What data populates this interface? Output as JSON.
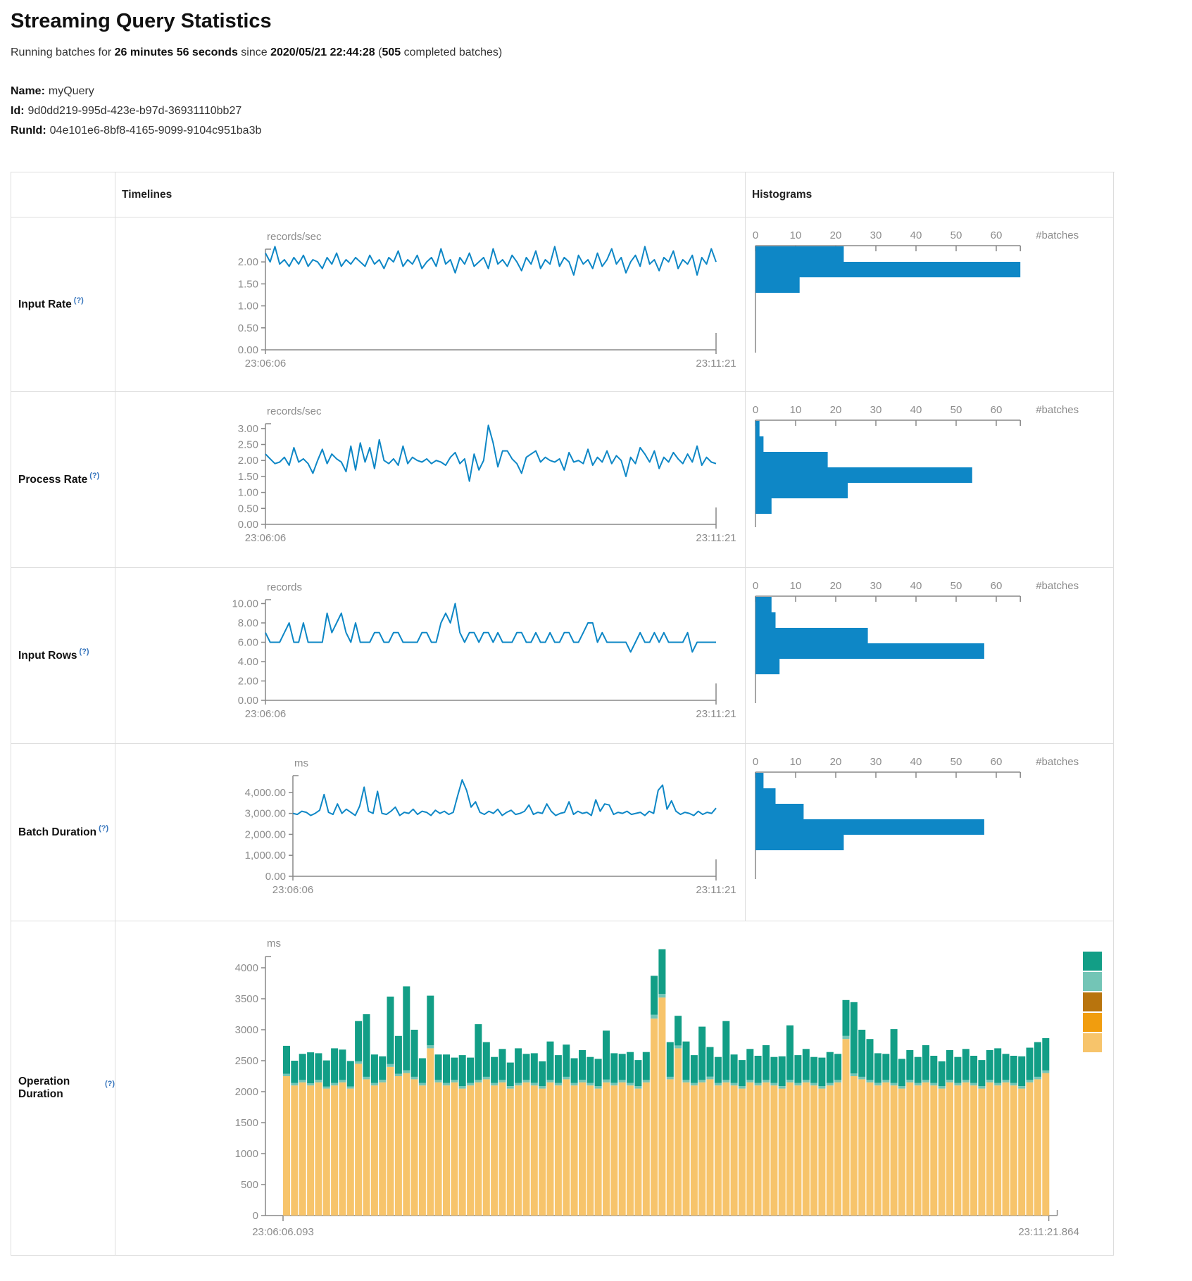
{
  "header": {
    "title": "Streaming Query Statistics",
    "running_prefix": "Running batches for ",
    "duration": "26 minutes 56 seconds",
    "since": " since ",
    "start_time": "2020/05/21 22:44:28",
    "open_paren": " (",
    "completed_count": "505",
    "completed_suffix": " completed batches)"
  },
  "query": {
    "name_label": "Name:",
    "name": "myQuery",
    "id_label": "Id:",
    "id": "9d0dd219-995d-423e-b97d-36931110bb27",
    "runid_label": "RunId:",
    "runid": "04e101e6-8bf8-4165-9099-9104c951ba3b"
  },
  "table": {
    "timelines_header": "Timelines",
    "histograms_header": "Histograms"
  },
  "rows": {
    "input_rate": {
      "label": "Input Rate",
      "help": "(?)"
    },
    "process_rate": {
      "label": "Process Rate",
      "help": "(?)"
    },
    "input_rows": {
      "label": "Input Rows",
      "help": "(?)"
    },
    "batch_duration": {
      "label": "Batch Duration",
      "help": "(?)"
    },
    "operation_duration": {
      "label": "Operation Duration",
      "help": "(?)"
    }
  },
  "colors": {
    "line_blue": "#0e87c6",
    "hist_blue": "#0e87c6",
    "axis_gray": "#888888",
    "text_gray": "#8c8c8c",
    "stack_tan": "#f7c46b",
    "stack_light_teal": "#73c5b6",
    "stack_teal": "#129e86",
    "legend_dark_orange": "#b8740d",
    "legend_orange": "#f19d0e"
  },
  "chart_data": [
    {
      "name": "Input Rate",
      "timeline": {
        "type": "line",
        "unit": "records/sec",
        "x_start": "23:06:06",
        "x_end": "23:11:21",
        "axis_x": 213,
        "ymax": 2.29,
        "yticks": [
          {
            "v": 0,
            "l": "0.00"
          },
          {
            "v": 0.5,
            "l": "0.50"
          },
          {
            "v": 1,
            "l": "1.00"
          },
          {
            "v": 1.5,
            "l": "1.50"
          },
          {
            "v": 2,
            "l": "2.00"
          }
        ],
        "values": [
          2.2,
          2.0,
          2.35,
          1.95,
          2.05,
          1.9,
          2.1,
          1.95,
          2.15,
          1.9,
          2.05,
          2.0,
          1.85,
          2.1,
          1.95,
          2.2,
          1.9,
          2.05,
          1.95,
          2.1,
          2.0,
          1.9,
          2.15,
          1.95,
          2.05,
          1.85,
          2.1,
          2.0,
          2.25,
          1.9,
          2.05,
          1.95,
          2.15,
          1.85,
          2.0,
          2.1,
          1.9,
          2.3,
          1.95,
          2.05,
          1.75,
          2.1,
          1.95,
          2.2,
          1.9,
          2.0,
          2.1,
          1.85,
          2.3,
          1.95,
          2.05,
          1.9,
          2.15,
          2.0,
          1.8,
          2.1,
          1.95,
          2.25,
          1.85,
          2.05,
          1.95,
          2.35,
          1.9,
          2.1,
          2.0,
          1.7,
          2.15,
          1.95,
          2.05,
          1.85,
          2.2,
          1.9,
          2.05,
          2.3,
          1.95,
          2.1,
          1.75,
          2.0,
          2.15,
          1.9,
          2.35,
          1.95,
          2.05,
          1.8,
          2.1,
          2.0,
          2.25,
          1.85,
          2.05,
          1.95,
          2.15,
          1.7,
          2.1,
          1.95,
          2.3,
          2.0
        ]
      },
      "histogram": {
        "type": "bar",
        "xlabel": "#batches",
        "xmax": 66,
        "xticks": [
          0,
          10,
          20,
          30,
          40,
          50,
          60
        ],
        "bins": [
          22,
          66,
          11
        ]
      }
    },
    {
      "name": "Process Rate",
      "timeline": {
        "type": "line",
        "unit": "records/sec",
        "x_start": "23:06:06",
        "x_end": "23:11:21",
        "axis_x": 213,
        "ymax": 3.15,
        "yticks": [
          {
            "v": 0,
            "l": "0.00"
          },
          {
            "v": 0.5,
            "l": "0.50"
          },
          {
            "v": 1,
            "l": "1.00"
          },
          {
            "v": 1.5,
            "l": "1.50"
          },
          {
            "v": 2,
            "l": "2.00"
          },
          {
            "v": 2.5,
            "l": "2.50"
          },
          {
            "v": 3,
            "l": "3.00"
          }
        ],
        "values": [
          2.2,
          2.05,
          1.9,
          1.95,
          2.1,
          1.85,
          2.4,
          1.95,
          2.05,
          1.9,
          1.6,
          2.0,
          2.35,
          1.9,
          2.2,
          2.05,
          1.95,
          1.65,
          2.45,
          1.7,
          2.55,
          1.95,
          2.4,
          1.75,
          2.65,
          2.0,
          1.9,
          2.05,
          1.85,
          2.45,
          1.9,
          2.1,
          2.0,
          1.95,
          2.05,
          1.9,
          2.0,
          1.95,
          1.85,
          2.1,
          2.25,
          1.9,
          2.05,
          1.35,
          2.2,
          1.7,
          2.0,
          3.1,
          2.55,
          1.8,
          2.3,
          2.3,
          2.05,
          1.9,
          1.6,
          2.1,
          2.2,
          2.3,
          1.95,
          2.1,
          2.0,
          1.95,
          2.05,
          1.7,
          2.25,
          1.95,
          2.0,
          1.9,
          2.35,
          1.85,
          2.1,
          1.95,
          2.3,
          1.9,
          2.15,
          2.0,
          1.5,
          2.1,
          1.9,
          2.4,
          2.2,
          1.95,
          2.3,
          1.75,
          2.1,
          1.95,
          2.25,
          2.05,
          1.9,
          2.2,
          1.95,
          2.45,
          1.85,
          2.1,
          1.95,
          1.9
        ]
      },
      "histogram": {
        "type": "bar",
        "xlabel": "#batches",
        "xmax": 66,
        "xticks": [
          0,
          10,
          20,
          30,
          40,
          50,
          60
        ],
        "bins": [
          1,
          2,
          18,
          54,
          23,
          4
        ]
      }
    },
    {
      "name": "Input Rows",
      "timeline": {
        "type": "line",
        "unit": "records",
        "x_start": "23:06:06",
        "x_end": "23:11:21",
        "axis_x": 213,
        "ymax": 10.4,
        "yticks": [
          {
            "v": 0,
            "l": "0.00"
          },
          {
            "v": 2,
            "l": "2.00"
          },
          {
            "v": 4,
            "l": "4.00"
          },
          {
            "v": 6,
            "l": "6.00"
          },
          {
            "v": 8,
            "l": "8.00"
          },
          {
            "v": 10,
            "l": "10.00"
          }
        ],
        "values": [
          7,
          6,
          6,
          6,
          7,
          8,
          6,
          6,
          8,
          6,
          6,
          6,
          6,
          9,
          7,
          8,
          9,
          7,
          6,
          8,
          6,
          6,
          6,
          7,
          7,
          6,
          6,
          7,
          7,
          6,
          6,
          6,
          6,
          7,
          7,
          6,
          6,
          8,
          9,
          8,
          10,
          7,
          6,
          7,
          7,
          6,
          7,
          7,
          6,
          7,
          6,
          6,
          6,
          7,
          7,
          6,
          6,
          7,
          6,
          6,
          7,
          6,
          6,
          7,
          7,
          6,
          6,
          7,
          8,
          8,
          6,
          7,
          6,
          6,
          6,
          6,
          6,
          5,
          6,
          7,
          6,
          6,
          7,
          6,
          7,
          6,
          6,
          6,
          6,
          7,
          5,
          6,
          6,
          6,
          6,
          6
        ]
      },
      "histogram": {
        "type": "bar",
        "xlabel": "#batches",
        "xmax": 66,
        "xticks": [
          0,
          10,
          20,
          30,
          40,
          50,
          60
        ],
        "bins": [
          4,
          5,
          28,
          57,
          6
        ]
      }
    },
    {
      "name": "Batch Duration",
      "timeline": {
        "type": "line",
        "unit": "ms",
        "x_start": "23:06:06",
        "x_end": "23:11:21",
        "axis_x": 252,
        "ymax": 4800,
        "yticks": [
          {
            "v": 0,
            "l": "0.00"
          },
          {
            "v": 1000,
            "l": "1,000.00"
          },
          {
            "v": 2000,
            "l": "2,000.00"
          },
          {
            "v": 3000,
            "l": "3,000.00"
          },
          {
            "v": 4000,
            "l": "4,000.00"
          }
        ],
        "values": [
          3000,
          2950,
          3100,
          3050,
          2900,
          3000,
          3150,
          3900,
          3050,
          2950,
          3450,
          3000,
          3200,
          3050,
          2900,
          3350,
          4250,
          3100,
          3000,
          4050,
          3000,
          2950,
          3100,
          3300,
          2900,
          3050,
          3000,
          3200,
          2950,
          3100,
          3050,
          2900,
          3150,
          3000,
          3100,
          2950,
          3050,
          3850,
          4600,
          4100,
          3300,
          3550,
          3050,
          2950,
          3100,
          3000,
          3200,
          2900,
          3050,
          3150,
          2950,
          3000,
          3100,
          3400,
          2950,
          3050,
          3000,
          3450,
          3100,
          2900,
          3000,
          3050,
          3550,
          2950,
          3100,
          3000,
          3050,
          2900,
          3650,
          3100,
          3450,
          3400,
          2950,
          3050,
          3000,
          3100,
          2950,
          3000,
          3050,
          2900,
          3100,
          3000,
          4100,
          4350,
          3200,
          3600,
          3100,
          2950,
          3050,
          3000,
          2900,
          3100,
          2950,
          3050,
          3000,
          3250
        ]
      },
      "histogram": {
        "type": "bar",
        "xlabel": "#batches",
        "xmax": 66,
        "xticks": [
          0,
          10,
          20,
          30,
          40,
          50,
          60
        ],
        "bins": [
          2,
          5,
          12,
          57,
          22
        ]
      }
    },
    {
      "name": "Operation Duration",
      "type": "stacked_bar",
      "unit": "ms",
      "x_start": "23:06:06.093",
      "x_end": "23:11:21.864",
      "ylim": [
        0,
        4400
      ],
      "yticks": [
        {
          "v": 0,
          "l": "0"
        },
        {
          "v": 500,
          "l": "500"
        },
        {
          "v": 1000,
          "l": "1000"
        },
        {
          "v": 1500,
          "l": "1500"
        },
        {
          "v": 2000,
          "l": "2000"
        },
        {
          "v": 2500,
          "l": "2500"
        },
        {
          "v": 3000,
          "l": "3000"
        },
        {
          "v": 3500,
          "l": "3500"
        },
        {
          "v": 4000,
          "l": "4000"
        }
      ],
      "stack_colors": [
        "#f7c46b",
        "#73c5b6",
        "#129e86"
      ],
      "legend_colors": [
        "#129e86",
        "#73c5b6",
        "#b8740d",
        "#f19d0e",
        "#f7c46b"
      ],
      "bars": [
        [
          2250,
          40,
          450
        ],
        [
          2100,
          40,
          360
        ],
        [
          2150,
          40,
          420
        ],
        [
          2100,
          35,
          500
        ],
        [
          2150,
          40,
          430
        ],
        [
          2050,
          35,
          420
        ],
        [
          2100,
          40,
          560
        ],
        [
          2150,
          40,
          490
        ],
        [
          2050,
          35,
          410
        ],
        [
          2450,
          40,
          650
        ],
        [
          2200,
          40,
          1010
        ],
        [
          2100,
          40,
          460
        ],
        [
          2150,
          40,
          380
        ],
        [
          2400,
          45,
          1090
        ],
        [
          2250,
          40,
          610
        ],
        [
          2300,
          45,
          1355
        ],
        [
          2200,
          40,
          760
        ],
        [
          2100,
          40,
          400
        ],
        [
          2700,
          50,
          800
        ],
        [
          2150,
          40,
          410
        ],
        [
          2100,
          40,
          460
        ],
        [
          2150,
          40,
          360
        ],
        [
          2050,
          40,
          500
        ],
        [
          2100,
          40,
          410
        ],
        [
          2150,
          40,
          900
        ],
        [
          2200,
          40,
          560
        ],
        [
          2100,
          40,
          420
        ],
        [
          2150,
          40,
          500
        ],
        [
          2050,
          40,
          380
        ],
        [
          2100,
          40,
          560
        ],
        [
          2150,
          40,
          420
        ],
        [
          2100,
          40,
          480
        ],
        [
          2050,
          40,
          400
        ],
        [
          2150,
          40,
          620
        ],
        [
          2100,
          40,
          450
        ],
        [
          2200,
          40,
          520
        ],
        [
          2100,
          40,
          400
        ],
        [
          2150,
          40,
          480
        ],
        [
          2100,
          40,
          420
        ],
        [
          2050,
          40,
          440
        ],
        [
          2150,
          45,
          790
        ],
        [
          2100,
          40,
          480
        ],
        [
          2150,
          40,
          420
        ],
        [
          2100,
          40,
          500
        ],
        [
          2050,
          40,
          420
        ],
        [
          2150,
          40,
          450
        ],
        [
          3180,
          60,
          630
        ],
        [
          3520,
          60,
          720
        ],
        [
          2200,
          40,
          560
        ],
        [
          2700,
          45,
          480
        ],
        [
          2150,
          40,
          620
        ],
        [
          2100,
          40,
          450
        ],
        [
          2150,
          40,
          860
        ],
        [
          2200,
          40,
          480
        ],
        [
          2100,
          40,
          420
        ],
        [
          2150,
          40,
          950
        ],
        [
          2100,
          40,
          460
        ],
        [
          2050,
          40,
          420
        ],
        [
          2150,
          40,
          500
        ],
        [
          2100,
          40,
          440
        ],
        [
          2150,
          40,
          560
        ],
        [
          2100,
          40,
          420
        ],
        [
          2050,
          40,
          480
        ],
        [
          2150,
          40,
          880
        ],
        [
          2100,
          40,
          450
        ],
        [
          2150,
          40,
          500
        ],
        [
          2100,
          40,
          420
        ],
        [
          2050,
          40,
          460
        ],
        [
          2100,
          40,
          500
        ],
        [
          2150,
          40,
          420
        ],
        [
          2850,
          50,
          580
        ],
        [
          2250,
          45,
          1150
        ],
        [
          2200,
          40,
          760
        ],
        [
          2150,
          40,
          660
        ],
        [
          2100,
          40,
          480
        ],
        [
          2150,
          40,
          420
        ],
        [
          2100,
          40,
          870
        ],
        [
          2050,
          40,
          440
        ],
        [
          2150,
          40,
          480
        ],
        [
          2100,
          40,
          420
        ],
        [
          2150,
          40,
          560
        ],
        [
          2100,
          40,
          440
        ],
        [
          2050,
          40,
          400
        ],
        [
          2150,
          40,
          480
        ],
        [
          2100,
          40,
          420
        ],
        [
          2150,
          40,
          500
        ],
        [
          2100,
          40,
          440
        ],
        [
          2050,
          40,
          420
        ],
        [
          2150,
          40,
          480
        ],
        [
          2100,
          40,
          560
        ],
        [
          2150,
          40,
          420
        ],
        [
          2100,
          40,
          440
        ],
        [
          2050,
          40,
          480
        ],
        [
          2150,
          40,
          520
        ],
        [
          2200,
          40,
          560
        ],
        [
          2300,
          45,
          520
        ]
      ]
    }
  ]
}
